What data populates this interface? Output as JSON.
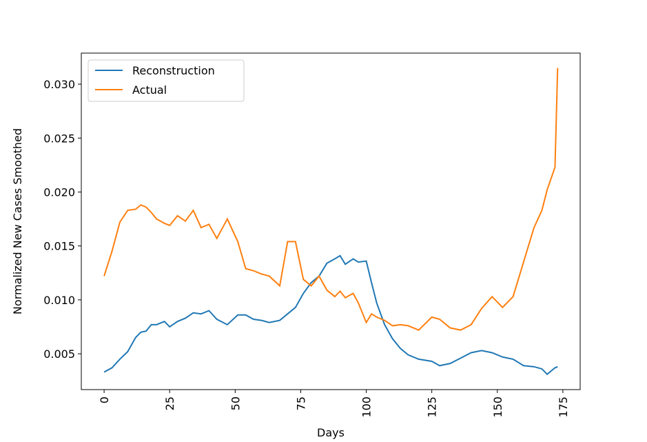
{
  "chart_data": {
    "type": "line",
    "xlabel": "Days",
    "ylabel": "Normalized New Cases Smoothed",
    "x": [
      0,
      3,
      6,
      9,
      12,
      14,
      16,
      18,
      20,
      23,
      25,
      28,
      31,
      34,
      37,
      40,
      43,
      47,
      51,
      54,
      57,
      60,
      63,
      67,
      70,
      73,
      76,
      79,
      82,
      85,
      88,
      90,
      92,
      95,
      97,
      100,
      102,
      104,
      107,
      110,
      113,
      116,
      120,
      125,
      128,
      132,
      136,
      140,
      144,
      148,
      152,
      156,
      160,
      164,
      167,
      169,
      172,
      173
    ],
    "series": [
      {
        "name": "Reconstruction",
        "color": "#1f77b4",
        "values": [
          0.0033,
          0.0037,
          0.0045,
          0.0052,
          0.0065,
          0.007,
          0.0071,
          0.0077,
          0.0077,
          0.008,
          0.0075,
          0.008,
          0.0083,
          0.0088,
          0.0087,
          0.009,
          0.0082,
          0.0077,
          0.0086,
          0.0086,
          0.0082,
          0.0081,
          0.0079,
          0.0081,
          0.0087,
          0.0093,
          0.0106,
          0.0116,
          0.0122,
          0.0134,
          0.0138,
          0.0141,
          0.0133,
          0.0138,
          0.0135,
          0.0136,
          0.0116,
          0.0097,
          0.0077,
          0.0064,
          0.0055,
          0.0049,
          0.0045,
          0.0043,
          0.0039,
          0.0041,
          0.0046,
          0.0051,
          0.0053,
          0.0051,
          0.0047,
          0.0045,
          0.0039,
          0.0038,
          0.0036,
          0.0031,
          0.0037,
          0.0038
        ]
      },
      {
        "name": "Actual",
        "color": "#ff7f0e",
        "values": [
          0.0122,
          0.0145,
          0.0172,
          0.0183,
          0.0184,
          0.0188,
          0.0186,
          0.0181,
          0.0175,
          0.0171,
          0.0169,
          0.0178,
          0.0173,
          0.0183,
          0.0167,
          0.017,
          0.0157,
          0.0175,
          0.0154,
          0.0129,
          0.0127,
          0.0124,
          0.0122,
          0.0113,
          0.0154,
          0.0154,
          0.0119,
          0.0113,
          0.0122,
          0.0109,
          0.0103,
          0.0108,
          0.0102,
          0.0106,
          0.0097,
          0.0079,
          0.0087,
          0.0084,
          0.0081,
          0.0076,
          0.0077,
          0.0076,
          0.0072,
          0.0084,
          0.0082,
          0.0074,
          0.0072,
          0.0077,
          0.0092,
          0.0103,
          0.0093,
          0.0103,
          0.0135,
          0.0167,
          0.0183,
          0.0202,
          0.0223,
          0.0315
        ]
      }
    ],
    "xlim": [
      -8.7,
      181.6
    ],
    "ylim": [
      0.00168,
      0.03288
    ],
    "xticks": [
      0,
      25,
      50,
      75,
      100,
      125,
      150,
      175
    ],
    "yticks": [
      0.005,
      {
        "value": 0.01,
        "label": "0.010"
      },
      0.015,
      {
        "value": 0.02,
        "label": "0.020"
      },
      0.025,
      {
        "value": 0.03,
        "label": "0.030"
      }
    ],
    "legend": "upper left"
  }
}
